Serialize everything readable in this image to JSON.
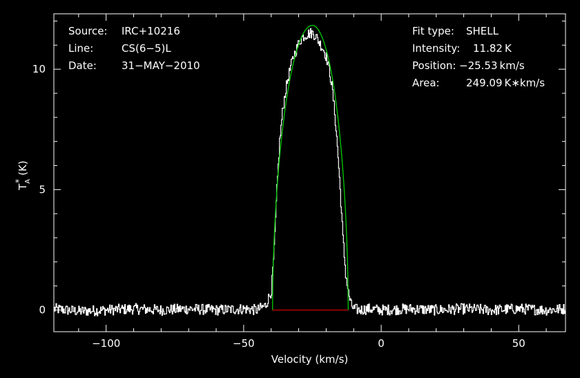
{
  "chart_data": {
    "type": "line",
    "xlabel": "Velocity (km/s)",
    "ylabel": "T",
    "ylabel_sub": "A",
    "ylabel_sup": "*",
    "ylabel_unit": "(K)",
    "xlim": [
      -119,
      67
    ],
    "ylim": [
      -0.9,
      12.3
    ],
    "xticks": [
      -100,
      -50,
      0,
      50
    ],
    "xtick_labels": [
      "−100",
      "−50",
      "0",
      "50"
    ],
    "yticks": [
      0,
      5,
      10
    ],
    "ytick_labels": [
      "0",
      "5",
      "10"
    ],
    "grid": false,
    "background": "#000000",
    "colors": {
      "spectrum": "#ffffff",
      "fit": "#00cc00",
      "baseline": "#cc0000",
      "axes": "#ffffff"
    },
    "info_left": {
      "source_label": "Source:",
      "source_value": "IRC+10216",
      "line_label": "Line:",
      "line_value": "CS(6−5)L",
      "date_label": "Date:",
      "date_value": "31−MAY−2010"
    },
    "fit_info": {
      "type_label": "Fit type:",
      "type_value": "SHELL",
      "intensity_label": "Intensity:",
      "intensity_value": "11.82 K",
      "position_label": "Position:",
      "position_value": "−25.53 km/s",
      "area_label": "Area:",
      "area_value": "249.09 K∗km/s"
    },
    "fit_model": {
      "name": "SHELL",
      "peak_intensity": 11.82,
      "center_velocity": -25.53,
      "area": 249.09,
      "v_start": -39.5,
      "v_end": -12.0
    },
    "baseline_segment": {
      "x": [
        -39.5,
        -12.0
      ],
      "y": [
        0,
        0
      ]
    },
    "series": [
      {
        "role": "spectrum",
        "x": [
          -119,
          -110,
          -100,
          -90,
          -80,
          -70,
          -60,
          -50,
          -45,
          -42,
          -41,
          -40,
          -39,
          -38,
          -37,
          -36,
          -35,
          -34,
          -33,
          -32,
          -31,
          -30,
          -29,
          -28,
          -27,
          -26,
          -25,
          -24,
          -23,
          -22,
          -21,
          -20,
          -19,
          -18,
          -17,
          -16,
          -15,
          -14,
          -13,
          -12,
          -11,
          -10,
          -8,
          -5,
          0,
          10,
          20,
          30,
          40,
          50,
          60,
          67
        ],
        "y": [
          0.05,
          -0.05,
          0.0,
          0.05,
          0.0,
          0.05,
          0.0,
          0.05,
          0.0,
          0.2,
          0.5,
          0.8,
          2.5,
          5.0,
          7.0,
          8.2,
          9.0,
          9.6,
          10.1,
          10.5,
          10.8,
          11.1,
          11.3,
          11.4,
          11.45,
          11.5,
          11.5,
          11.4,
          11.2,
          11.0,
          10.8,
          10.5,
          10.0,
          9.3,
          8.2,
          6.8,
          5.0,
          3.0,
          1.5,
          0.7,
          0.2,
          0.05,
          0.0,
          0.05,
          0.0,
          0.05,
          0.0,
          0.05,
          0.0,
          0.05,
          0.0,
          0.05
        ]
      }
    ]
  }
}
